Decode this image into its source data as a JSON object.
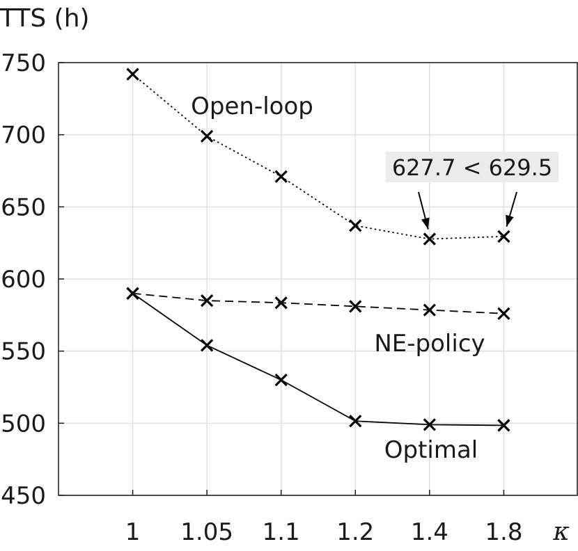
{
  "chart_data": {
    "type": "line",
    "title": "",
    "ylabel": "TTS (h)",
    "xlabel": "κ",
    "ylim": [
      450,
      750
    ],
    "yticks": [
      450,
      500,
      550,
      600,
      650,
      700,
      750
    ],
    "categories": [
      "1",
      "1.05",
      "1.1",
      "1.2",
      "1.4",
      "1.8"
    ],
    "grid": true,
    "series": [
      {
        "name": "Open-loop",
        "style": "dotted",
        "marker": "x",
        "values": [
          742,
          699,
          671,
          637,
          627.7,
          629.5
        ]
      },
      {
        "name": "NE-policy",
        "style": "dashed",
        "marker": "x",
        "values": [
          590,
          585,
          583.5,
          581,
          578.5,
          576
        ]
      },
      {
        "name": "Optimal",
        "style": "solid",
        "marker": "x",
        "values": [
          590,
          554,
          530,
          501.5,
          499,
          498.5
        ]
      }
    ],
    "annotation": {
      "text": "627.7 < 629.5",
      "background": "#ebebeb",
      "points_to": [
        [
          4,
          627.7
        ],
        [
          5,
          629.5
        ]
      ]
    },
    "colors": {
      "line": "#000000",
      "grid": "#e0e0e0",
      "axis": "#1a1a1a"
    }
  }
}
